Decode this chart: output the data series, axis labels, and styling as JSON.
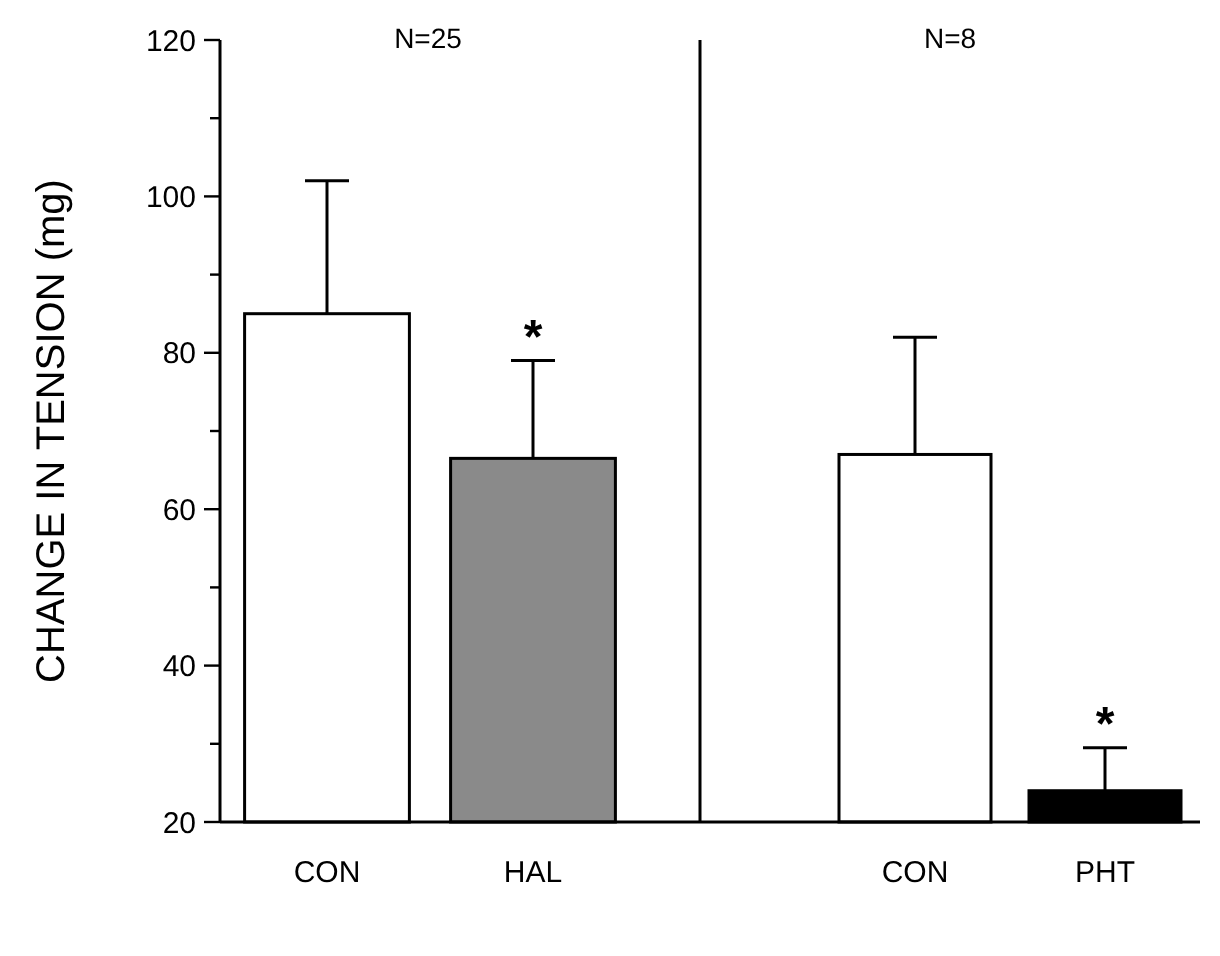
{
  "chart_data": [
    {
      "type": "bar",
      "ylabel": "CHANGE IN TENSION (mg)",
      "categories": [
        "CON",
        "HAL"
      ],
      "values": [
        85,
        66.5
      ],
      "colors": [
        "#ffffff",
        "#8a8a8a"
      ],
      "errors": [
        [
          85,
          102
        ],
        [
          66.5,
          79
        ]
      ],
      "ylim": [
        20,
        120
      ],
      "yticks": [
        20,
        {
          "value": 30,
          "label": null
        },
        40,
        {
          "value": 50,
          "label": null
        },
        60,
        {
          "value": 70,
          "label": null
        },
        80,
        {
          "value": 90,
          "label": null
        },
        100,
        {
          "value": 110,
          "label": null
        },
        120
      ],
      "annotations": [
        "N=25",
        "*"
      ],
      "grid": false,
      "legend": false
    },
    {
      "type": "bar",
      "categories": [
        "CON",
        "PHT"
      ],
      "values": [
        67,
        24
      ],
      "colors": [
        "#ffffff",
        "#000000"
      ],
      "errors": [
        [
          67,
          82
        ],
        [
          24,
          29.5
        ]
      ],
      "ylim": [
        20,
        120
      ],
      "tick_labels": "x",
      "annotations": [
        "N=8",
        "*"
      ],
      "grid": false,
      "legend": false
    }
  ]
}
